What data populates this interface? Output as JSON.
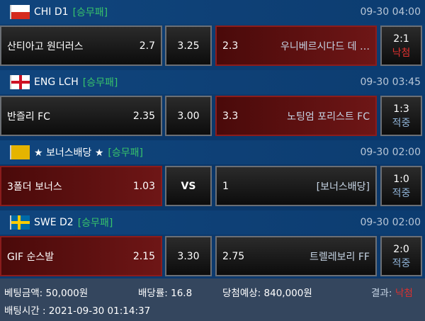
{
  "games": [
    {
      "flag": "chile-flag-icon",
      "league": "CHI D1",
      "type": "[승무패]",
      "time": "09-30 04:00",
      "home": "산티아고 원더러스",
      "home_odds": "2.7",
      "draw": "3.25",
      "away_odds": "2.3",
      "away": "우니베르시다드 데 …",
      "score": "2:1",
      "result": "낙첨",
      "selected": "away"
    },
    {
      "flag": "england-flag-icon",
      "league": "ENG LCH",
      "type": "[승무패]",
      "time": "09-30 03:45",
      "home": "반즐리 FC",
      "home_odds": "2.35",
      "draw": "3.00",
      "away_odds": "3.3",
      "away": "노팅엄 포리스트 FC",
      "score": "1:3",
      "result": "적중",
      "selected": "away"
    },
    {
      "flag": "bonus-icon",
      "league": "★ 보너스배당 ★",
      "type": "[승무패]",
      "time": "09-30 02:00",
      "home": "3폴더 보너스",
      "home_odds": "1.03",
      "draw": "VS",
      "away_odds": "1",
      "away": "[보너스배당]",
      "score": "1:0",
      "result": "적중",
      "selected": "home"
    },
    {
      "flag": "sweden-flag-icon",
      "league": "SWE D2",
      "type": "[승무패]",
      "time": "09-30 02:00",
      "home": "GIF 순스발",
      "home_odds": "2.15",
      "draw": "3.30",
      "away_odds": "2.75",
      "away": "트렐레보리 FF",
      "score": "2:0",
      "result": "적중",
      "selected": "home"
    }
  ],
  "footer": {
    "bet_amount": "베팅금액: 50,000원",
    "odds": "배당률: 16.8",
    "expected": "당첨예상: 840,000원",
    "result_label": "결과: ",
    "result": "낙첨",
    "bet_time": "배팅시간 : 2021-09-30 01:14:37"
  },
  "colors": {
    "selected": "#6e1616",
    "win": "#8fb3d8",
    "lose": "#e0302e",
    "type": "#38c46a"
  }
}
